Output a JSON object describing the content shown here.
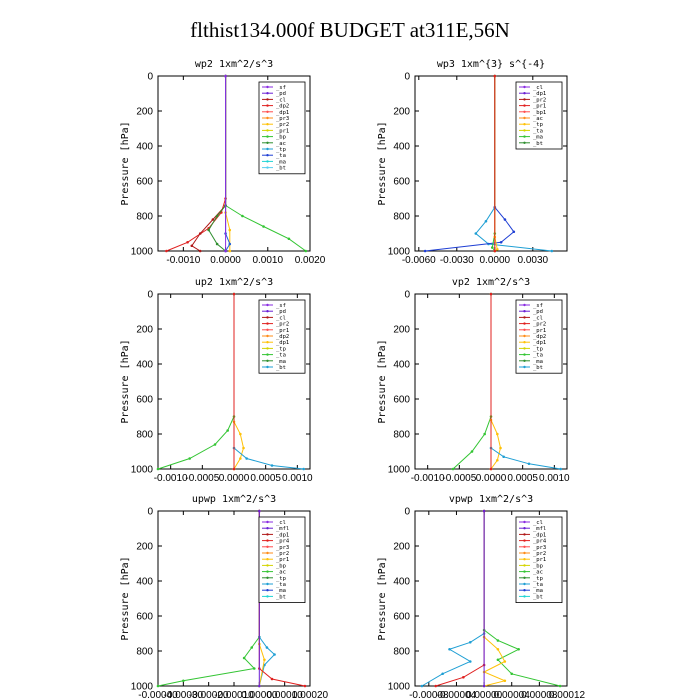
{
  "figure_title": "flthist134.000f  BUDGET at311E,56N",
  "chart_data": [
    {
      "type": "line",
      "title": "wp2  1xm^2/s^3",
      "ylabel": "Pressure [hPa]",
      "ylim": [
        1000,
        0
      ],
      "y_ticks": [
        "0",
        "200",
        "400",
        "600",
        "800",
        "1000"
      ],
      "xlim": [
        -0.0016,
        0.002
      ],
      "x_ticks": [
        -0.001,
        0.0,
        0.001,
        0.002
      ],
      "x_tick_labels": [
        "-0.0010",
        "0.0000",
        "0.0010",
        "0.0020"
      ],
      "legend": [
        "_sf",
        "_pd",
        "_cl",
        "_dp2",
        "_dp1",
        "_pr3",
        "_pr2",
        "_pr1",
        "_bp",
        "_ac",
        "_tp",
        "_ta",
        "_ma",
        "_bt"
      ],
      "legend_location": "top-right",
      "series": [
        {
          "color": "#e0201f",
          "points": [
            [
              0.0,
              0
            ],
            [
              0.0,
              700
            ],
            [
              -0.0001,
              780
            ],
            [
              -0.0004,
              870
            ],
            [
              -0.0009,
              950
            ],
            [
              -0.0014,
              1000
            ]
          ]
        },
        {
          "color": "#b01818",
          "points": [
            [
              0.0,
              0
            ],
            [
              0.0,
              740
            ],
            [
              -0.0003,
              820
            ],
            [
              -0.0006,
              900
            ],
            [
              -0.0008,
              970
            ],
            [
              -0.0006,
              1000
            ]
          ]
        },
        {
          "color": "#33c533",
          "points": [
            [
              0.0,
              0
            ],
            [
              0.0,
              740
            ],
            [
              0.0004,
              800
            ],
            [
              0.0009,
              860
            ],
            [
              0.0015,
              930
            ],
            [
              0.0019,
              1000
            ]
          ]
        },
        {
          "color": "#2f8f2f",
          "points": [
            [
              0.0,
              0
            ],
            [
              0.0,
              740
            ],
            [
              -0.0002,
              800
            ],
            [
              -0.0004,
              880
            ],
            [
              -0.0002,
              960
            ],
            [
              0.0,
              1000
            ]
          ]
        },
        {
          "color": "#ffc107",
          "points": [
            [
              0.0,
              0
            ],
            [
              0.0,
              780
            ],
            [
              0.0001,
              880
            ],
            [
              0.0001,
              1000
            ]
          ]
        },
        {
          "color": "#1f5fd4",
          "points": [
            [
              0.0,
              0
            ],
            [
              0.0,
              900
            ],
            [
              0.0001,
              960
            ],
            [
              0.0,
              1000
            ]
          ]
        },
        {
          "color": "#8a2be2",
          "points": [
            [
              0.0,
              0
            ],
            [
              0.0,
              1000
            ]
          ]
        }
      ]
    },
    {
      "type": "line",
      "title": "wp3  1xm^{3} s^{-4}",
      "ylabel": "Pressure [hPa]",
      "ylim": [
        1000,
        0
      ],
      "y_ticks": [
        "0",
        "200",
        "400",
        "600",
        "800",
        "1000"
      ],
      "xlim": [
        -0.0063,
        0.0057
      ],
      "x_ticks": [
        -0.006,
        -0.003,
        0.0,
        0.003
      ],
      "x_tick_labels": [
        "-0.0060",
        "-0.0030",
        "0.0000",
        "0.0030"
      ],
      "legend": [
        "_cl",
        "_dp1",
        "_pr2",
        "_pr1",
        "_bp1",
        "_ac",
        "_tp",
        "_ta",
        "_ma",
        "_bt"
      ],
      "legend_location": "top-right",
      "series": [
        {
          "color": "#1f9fd4",
          "points": [
            [
              0.0,
              0
            ],
            [
              0.0,
              750
            ],
            [
              -0.0007,
              830
            ],
            [
              -0.0015,
              900
            ],
            [
              -0.0005,
              960
            ],
            [
              0.0045,
              1000
            ]
          ]
        },
        {
          "color": "#1f3fd4",
          "points": [
            [
              0.0,
              0
            ],
            [
              0.0,
              750
            ],
            [
              0.0008,
              820
            ],
            [
              0.0015,
              890
            ],
            [
              0.0005,
              950
            ],
            [
              -0.0055,
              1000
            ]
          ]
        },
        {
          "color": "#33c533",
          "points": [
            [
              0.0,
              0
            ],
            [
              0.0,
              900
            ],
            [
              -0.0002,
              980
            ],
            [
              0.0,
              1000
            ]
          ]
        },
        {
          "color": "#ffc107",
          "points": [
            [
              0.0,
              0
            ],
            [
              0.0,
              920
            ],
            [
              0.0002,
              990
            ],
            [
              0.0,
              1000
            ]
          ]
        },
        {
          "color": "#e0201f",
          "points": [
            [
              0.0,
              0
            ],
            [
              0.0,
              1000
            ]
          ]
        }
      ]
    },
    {
      "type": "line",
      "title": "up2  1xm^2/s^3",
      "ylabel": "Pressure [hPa]",
      "ylim": [
        1000,
        0
      ],
      "y_ticks": [
        "0",
        "200",
        "400",
        "600",
        "800",
        "1000"
      ],
      "xlim": [
        -0.0012,
        0.0012
      ],
      "x_ticks": [
        -0.001,
        -0.0005,
        0.0,
        0.0005,
        0.001
      ],
      "x_tick_labels": [
        "-0.0010",
        "-0.0005",
        "0.0000",
        "0.0005",
        "0.0010"
      ],
      "legend": [
        "_sf",
        "_pd",
        "_cl",
        "_pr2",
        "_pr1",
        "_dp2",
        "_dp1",
        "_tp",
        "_ta",
        "_ma",
        "_bt"
      ],
      "legend_location": "top-right",
      "series": [
        {
          "color": "#33c533",
          "points": [
            [
              0.0,
              0
            ],
            [
              0.0,
              700
            ],
            [
              -0.0001,
              780
            ],
            [
              -0.0003,
              860
            ],
            [
              -0.0007,
              940
            ],
            [
              -0.0012,
              1000
            ]
          ]
        },
        {
          "color": "#ffc107",
          "points": [
            [
              0.0,
              0
            ],
            [
              0.0,
              730
            ],
            [
              0.0001,
              800
            ],
            [
              0.00015,
              880
            ],
            [
              0.0001,
              940
            ],
            [
              0.0,
              1000
            ]
          ]
        },
        {
          "color": "#1f9fd4",
          "points": [
            [
              0.0,
              0
            ],
            [
              0.0,
              880
            ],
            [
              0.0002,
              940
            ],
            [
              0.0006,
              980
            ],
            [
              0.0011,
              1000
            ]
          ]
        },
        {
          "color": "#e0201f",
          "points": [
            [
              0.0,
              0
            ],
            [
              0.0,
              1000
            ]
          ]
        }
      ]
    },
    {
      "type": "line",
      "title": "vp2  1xm^2/s^3",
      "ylabel": "Pressure [hPa]",
      "ylim": [
        1000,
        0
      ],
      "y_ticks": [
        "0",
        "200",
        "400",
        "600",
        "800",
        "1000"
      ],
      "xlim": [
        -0.0012,
        0.0012
      ],
      "x_ticks": [
        -0.001,
        -0.0005,
        0.0,
        0.0005,
        0.001
      ],
      "x_tick_labels": [
        "-0.0010",
        "-0.0005",
        "0.0000",
        "0.0005",
        "0.0010"
      ],
      "legend": [
        "_sf",
        "_pd",
        "_cl",
        "_pr2",
        "_pr1",
        "_dp2",
        "_dp1",
        "_tp",
        "_ta",
        "_ma",
        "_bt"
      ],
      "legend_location": "top-right",
      "series": [
        {
          "color": "#33c533",
          "points": [
            [
              0.0,
              0
            ],
            [
              0.0,
              700
            ],
            [
              -0.0001,
              800
            ],
            [
              -0.0003,
              900
            ],
            [
              -0.0006,
              1000
            ]
          ]
        },
        {
          "color": "#ffc107",
          "points": [
            [
              0.0,
              0
            ],
            [
              0.0,
              720
            ],
            [
              0.0001,
              800
            ],
            [
              0.00015,
              880
            ],
            [
              0.0001,
              950
            ],
            [
              0.0,
              1000
            ]
          ]
        },
        {
          "color": "#1f9fd4",
          "points": [
            [
              0.0,
              0
            ],
            [
              0.0,
              880
            ],
            [
              0.0002,
              930
            ],
            [
              0.0006,
              970
            ],
            [
              0.0011,
              1000
            ]
          ]
        },
        {
          "color": "#e0201f",
          "points": [
            [
              0.0,
              0
            ],
            [
              0.0,
              1000
            ]
          ]
        }
      ]
    },
    {
      "type": "line",
      "title": "upwp  1xm^2/s^3",
      "ylabel": "Pressure [hPa]",
      "ylim": [
        1000,
        0
      ],
      "y_ticks": [
        "0",
        "200",
        "400",
        "600",
        "800",
        "1000"
      ],
      "xlim": [
        -0.0004,
        0.0002
      ],
      "x_ticks": [
        -0.0004,
        -0.0003,
        -0.0002,
        -0.0001,
        0.0,
        0.0001,
        0.0002
      ],
      "x_tick_labels": [
        "-0.00040",
        "-0.00030",
        "-0.00020",
        "-0.00010",
        "0.00000",
        "0.00010",
        "0.00020"
      ],
      "legend": [
        "_cl",
        "_mfl",
        "_dp1",
        "_pr4",
        "_pr3",
        "_pr2",
        "_pr1",
        "_bp",
        "_ac",
        "_tp",
        "_ta",
        "_ma",
        "_bt"
      ],
      "legend_location": "top-right",
      "series": [
        {
          "color": "#33c533",
          "points": [
            [
              0.0,
              0
            ],
            [
              0.0,
              720
            ],
            [
              -3e-05,
              780
            ],
            [
              -6e-05,
              840
            ],
            [
              -2e-05,
              900
            ],
            [
              -0.0003,
              970
            ],
            [
              -0.0004,
              1000
            ]
          ]
        },
        {
          "color": "#1f9fd4",
          "points": [
            [
              0.0,
              0
            ],
            [
              0.0,
              720
            ],
            [
              3e-05,
              780
            ],
            [
              6e-05,
              820
            ],
            [
              2e-05,
              880
            ],
            [
              0.0,
              1000
            ]
          ]
        },
        {
          "color": "#ffc107",
          "points": [
            [
              0.0,
              0
            ],
            [
              0.0,
              760
            ],
            [
              2e-05,
              850
            ],
            [
              0.0,
              1000
            ]
          ]
        },
        {
          "color": "#e0201f",
          "points": [
            [
              0.0,
              0
            ],
            [
              0.0,
              900
            ],
            [
              5e-05,
              960
            ],
            [
              0.00018,
              1000
            ]
          ]
        },
        {
          "color": "#6a1fd4",
          "points": [
            [
              0.0,
              0
            ],
            [
              0.0,
              1000
            ]
          ]
        }
      ]
    },
    {
      "type": "line",
      "title": "vpwp  1xm^2/s^3",
      "ylabel": "Pressure [hPa]",
      "ylim": [
        1000,
        0
      ],
      "y_ticks": [
        "0",
        "200",
        "400",
        "600",
        "800",
        "1000"
      ],
      "xlim": [
        -0.0001,
        0.00012
      ],
      "x_ticks": [
        -8e-05,
        -4e-05,
        0.0,
        4e-05,
        8e-05,
        0.00012
      ],
      "x_tick_labels": [
        "-0.00008",
        "-0.00004",
        "0.00000",
        "0.00004",
        "0.00008",
        "0.00012"
      ],
      "legend": [
        "_cl",
        "_mfl",
        "_dp1",
        "_pr4",
        "_pr3",
        "_pr2",
        "_pr1",
        "_bp",
        "_ac",
        "_tp",
        "_ta",
        "_ma",
        "_bt"
      ],
      "legend_location": "top-right",
      "series": [
        {
          "color": "#33c533",
          "points": [
            [
              0.0,
              0
            ],
            [
              0.0,
              680
            ],
            [
              2e-05,
              740
            ],
            [
              5e-05,
              790
            ],
            [
              2e-05,
              850
            ],
            [
              4e-05,
              930
            ],
            [
              0.00011,
              1000
            ]
          ]
        },
        {
          "color": "#1f9fd4",
          "points": [
            [
              0.0,
              0
            ],
            [
              0.0,
              700
            ],
            [
              -2e-05,
              750
            ],
            [
              -5e-05,
              790
            ],
            [
              -2e-05,
              860
            ],
            [
              -6e-05,
              930
            ],
            [
              -9e-05,
              1000
            ]
          ]
        },
        {
          "color": "#ffc107",
          "points": [
            [
              0.0,
              0
            ],
            [
              0.0,
              720
            ],
            [
              2e-05,
              790
            ],
            [
              3e-05,
              860
            ],
            [
              0.0,
              920
            ],
            [
              3e-05,
              970
            ],
            [
              0.0,
              1000
            ]
          ]
        },
        {
          "color": "#e0201f",
          "points": [
            [
              0.0,
              0
            ],
            [
              0.0,
              880
            ],
            [
              -3e-05,
              950
            ],
            [
              -7e-05,
              1000
            ]
          ]
        },
        {
          "color": "#6a1fd4",
          "points": [
            [
              0.0,
              0
            ],
            [
              0.0,
              1000
            ]
          ]
        }
      ]
    }
  ]
}
